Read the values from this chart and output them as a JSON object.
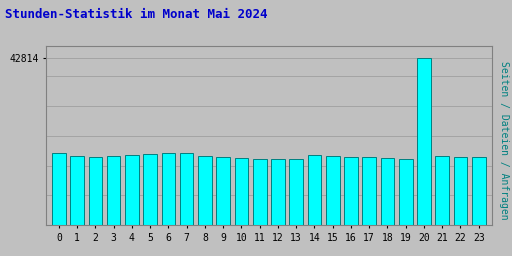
{
  "title": "Stunden-Statistik im Monat Mai 2024",
  "ylabel": "Seiten / Dateien / Anfragen",
  "xlabel_values": [
    0,
    1,
    2,
    3,
    4,
    5,
    6,
    7,
    8,
    9,
    10,
    11,
    12,
    13,
    14,
    15,
    16,
    17,
    18,
    19,
    20,
    21,
    22,
    23
  ],
  "values": [
    18500,
    17800,
    17600,
    17700,
    18100,
    18400,
    18600,
    18500,
    17900,
    17500,
    17200,
    17000,
    16900,
    17000,
    18000,
    17700,
    17600,
    17500,
    17300,
    17100,
    42814,
    17800,
    17500,
    17400
  ],
  "bar_fill_color": "#00FFFF",
  "bar_edge_color": "#008080",
  "background_color": "#C0C0C0",
  "plot_bg_color": "#C0C0C0",
  "title_color": "#0000CC",
  "ylabel_color": "#008080",
  "ytick_label": "42814",
  "ymax": 46000,
  "grid_color": "#999999"
}
